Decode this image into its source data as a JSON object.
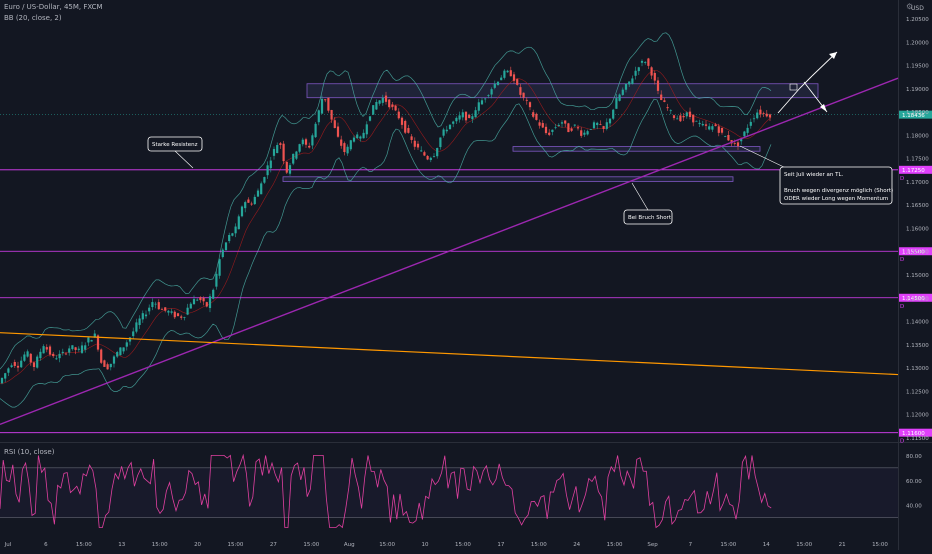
{
  "header": {
    "symbol_title": "Euro / US-Dollar, 45M, FXCM",
    "indicator_bb": "BB (20, close, 2)",
    "indicator_rsi": "RSI (10, close)",
    "currency": "USD"
  },
  "chart_data": [
    {
      "type": "candlestick",
      "title": "Euro / US-Dollar, 45M, FXCM",
      "x_tick_labels": [
        "Jul",
        "6",
        "15:00",
        "13",
        "15:00",
        "20",
        "15:00",
        "27",
        "15:00",
        "Aug",
        "15:00",
        "10",
        "15:00",
        "17",
        "15:00",
        "24",
        "15:00",
        "Sep",
        "7",
        "15:00",
        "14",
        "15:00",
        "21",
        "15:00"
      ],
      "y_tick_labels": [
        "1.20500",
        "1.20000",
        "1.19500",
        "1.19000",
        "1.18500",
        "1.18000",
        "1.17500",
        "1.17000",
        "1.16500",
        "1.16000",
        "1.15500",
        "1.15000",
        "1.14500",
        "1.14000",
        "1.13500",
        "1.13000",
        "1.12500",
        "1.12000",
        "1.11500"
      ],
      "ylim": [
        1.114,
        1.209
      ],
      "price_path": [
        [
          0,
          1.1265
        ],
        [
          6,
          1.1285
        ],
        [
          13,
          1.131
        ],
        [
          20,
          1.1305
        ],
        [
          28,
          1.1335
        ],
        [
          35,
          1.13
        ],
        [
          45,
          1.135
        ],
        [
          55,
          1.132
        ],
        [
          65,
          1.133
        ],
        [
          72,
          1.1345
        ],
        [
          80,
          1.1335
        ],
        [
          90,
          1.136
        ],
        [
          97,
          1.137
        ],
        [
          103,
          1.131
        ],
        [
          110,
          1.13
        ],
        [
          118,
          1.133
        ],
        [
          125,
          1.1345
        ],
        [
          133,
          1.137
        ],
        [
          140,
          1.14
        ],
        [
          148,
          1.142
        ],
        [
          155,
          1.1445
        ],
        [
          162,
          1.1425
        ],
        [
          170,
          1.142
        ],
        [
          178,
          1.141
        ],
        [
          185,
          1.141
        ],
        [
          192,
          1.144
        ],
        [
          200,
          1.145
        ],
        [
          208,
          1.143
        ],
        [
          215,
          1.147
        ],
        [
          222,
          1.154
        ],
        [
          230,
          1.158
        ],
        [
          238,
          1.16
        ],
        [
          245,
          1.166
        ],
        [
          252,
          1.165
        ],
        [
          260,
          1.168
        ],
        [
          267,
          1.172
        ],
        [
          274,
          1.176
        ],
        [
          281,
          1.179
        ],
        [
          288,
          1.172
        ],
        [
          296,
          1.176
        ],
        [
          303,
          1.179
        ],
        [
          310,
          1.177
        ],
        [
          318,
          1.183
        ],
        [
          325,
          1.189
        ],
        [
          332,
          1.184
        ],
        [
          340,
          1.179
        ],
        [
          347,
          1.176
        ],
        [
          355,
          1.18
        ],
        [
          363,
          1.179
        ],
        [
          370,
          1.184
        ],
        [
          378,
          1.187
        ],
        [
          385,
          1.188
        ],
        [
          393,
          1.186
        ],
        [
          400,
          1.184
        ],
        [
          407,
          1.181
        ],
        [
          415,
          1.178
        ],
        [
          422,
          1.1765
        ],
        [
          429,
          1.175
        ],
        [
          436,
          1.176
        ],
        [
          443,
          1.18
        ],
        [
          450,
          1.182
        ],
        [
          457,
          1.183
        ],
        [
          464,
          1.1845
        ],
        [
          471,
          1.183
        ],
        [
          478,
          1.186
        ],
        [
          486,
          1.188
        ],
        [
          493,
          1.19
        ],
        [
          500,
          1.192
        ],
        [
          507,
          1.1935
        ],
        [
          514,
          1.193
        ],
        [
          521,
          1.189
        ],
        [
          528,
          1.187
        ],
        [
          535,
          1.184
        ],
        [
          542,
          1.182
        ],
        [
          549,
          1.18
        ],
        [
          556,
          1.1815
        ],
        [
          563,
          1.183
        ],
        [
          570,
          1.181
        ],
        [
          577,
          1.182
        ],
        [
          584,
          1.18
        ],
        [
          591,
          1.1815
        ],
        [
          598,
          1.1825
        ],
        [
          605,
          1.181
        ],
        [
          612,
          1.184
        ],
        [
          619,
          1.188
        ],
        [
          626,
          1.19
        ],
        [
          633,
          1.192
        ],
        [
          640,
          1.195
        ],
        [
          647,
          1.196
        ],
        [
          654,
          1.193
        ],
        [
          661,
          1.188
        ],
        [
          668,
          1.186
        ],
        [
          675,
          1.184
        ],
        [
          682,
          1.1835
        ],
        [
          689,
          1.1845
        ],
        [
          696,
          1.183
        ],
        [
          703,
          1.182
        ],
        [
          710,
          1.1815
        ],
        [
          717,
          1.182
        ],
        [
          724,
          1.18
        ],
        [
          731,
          1.179
        ],
        [
          738,
          1.1775
        ],
        [
          745,
          1.18
        ],
        [
          752,
          1.183
        ],
        [
          759,
          1.185
        ],
        [
          766,
          1.1845
        ],
        [
          773,
          1.1843
        ]
      ],
      "bb_offset": 0.0045,
      "horizontal_levels": [
        {
          "price": 1.1725,
          "label": "1.17250",
          "tag": "D"
        },
        {
          "price": 1.155,
          "label": "1.15500",
          "tag": "D"
        },
        {
          "price": 1.145,
          "label": "1.14500",
          "tag": "D"
        },
        {
          "price": 1.116,
          "label": "1.11600",
          "tag": "D"
        }
      ],
      "current_price_label": "1.18436",
      "annotations": [
        "Starke Resistenz",
        "Bei Bruch Short",
        "Seit Juli wieder an TL.",
        "Bruch wegen divergenz möglich (Short)",
        "ODER wieder Long wegen Momentum"
      ],
      "colors": {
        "background": "#131722",
        "up": "#26a69a",
        "down": "#ef5350",
        "trendline": "#9c27b0",
        "falling_line": "#ff9800",
        "level": "#e040fb",
        "band": "#4db6ac",
        "zone": "#2a2e4a"
      }
    },
    {
      "type": "line",
      "title": "RSI (10, close)",
      "y_tick_labels": [
        "80.00",
        "60.00",
        "40.00"
      ],
      "ylim": [
        20,
        90
      ],
      "bands": [
        70,
        30
      ],
      "color": "#e040a0"
    }
  ]
}
